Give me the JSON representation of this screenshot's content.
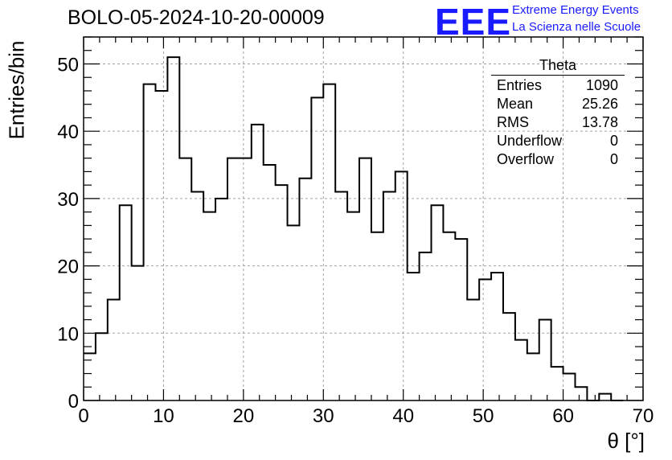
{
  "header": {
    "title": "BOLO-05-2024-10-20-00009",
    "logo_text": "EEE",
    "brand_line1": "Extreme Energy Events",
    "brand_line2": "La Scienza nelle Scuole"
  },
  "stats_box": {
    "name": "Theta",
    "rows": [
      {
        "label": "Entries",
        "value": "1090"
      },
      {
        "label": "Mean",
        "value": "25.26"
      },
      {
        "label": "RMS",
        "value": "13.78"
      },
      {
        "label": "Underflow",
        "value": "0"
      },
      {
        "label": "Overflow",
        "value": "0"
      }
    ]
  },
  "colors": {
    "logo": "#1a1aff",
    "line": "#000000",
    "grid": "#a0a0a0"
  },
  "chart_data": {
    "type": "bar",
    "style": "step-histogram",
    "xlabel": "θ [°]",
    "ylabel": "Entries/bin",
    "xlim": [
      0,
      70
    ],
    "ylim": [
      0,
      54
    ],
    "grid": true,
    "bin_width": 1.5,
    "bin_start": 0,
    "x_ticks": [
      0,
      10,
      20,
      30,
      40,
      50,
      60,
      70
    ],
    "y_ticks": [
      0,
      10,
      20,
      30,
      40,
      50
    ],
    "x_tick_labels": [
      "0",
      "10",
      "20",
      "30",
      "40",
      "50",
      "60",
      "70"
    ],
    "y_tick_labels": [
      "0",
      "10",
      "20",
      "30",
      "40",
      "50"
    ],
    "values": [
      7,
      10,
      15,
      29,
      20,
      47,
      46,
      51,
      36,
      31,
      28,
      30,
      36,
      36,
      41,
      35,
      32,
      26,
      33,
      45,
      47,
      31,
      28,
      36,
      25,
      31,
      34,
      19,
      22,
      29,
      25,
      24,
      15,
      18,
      19,
      13,
      9,
      7,
      12,
      5,
      4,
      2,
      0,
      1,
      0
    ]
  }
}
